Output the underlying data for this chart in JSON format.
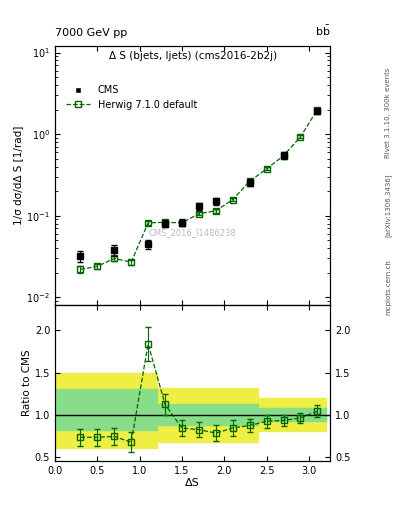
{
  "title_left": "7000 GeV pp",
  "title_right": "b$\\bar{b}$",
  "panel_title": "Δ S (bjets, ljets) (cms2016-2b2j)",
  "ylabel_main": "1/σ dσ/dΔ S [1/rad]",
  "ylabel_ratio": "Ratio to CMS",
  "xlabel": "ΔS",
  "right_label": "Rivet 3.1.10, 300k events",
  "arxiv_label": "[arXiv:1306.3436]",
  "mcplots_label": "mcplots.cern.ch",
  "watermark": "CMS_2016_I1486238",
  "cms_label": "CMS",
  "mc_label": "Herwig 7.1.0 default",
  "cms_x": [
    0.3,
    0.7,
    1.1,
    1.3,
    1.5,
    1.7,
    1.9,
    2.3,
    2.7,
    3.1
  ],
  "cms_y": [
    0.032,
    0.038,
    0.045,
    0.08,
    0.082,
    0.13,
    0.15,
    0.255,
    0.55,
    1.9
  ],
  "cms_yerr": [
    0.005,
    0.006,
    0.006,
    0.008,
    0.008,
    0.012,
    0.015,
    0.025,
    0.05,
    0.15
  ],
  "mc_x": [
    0.3,
    0.5,
    0.7,
    0.9,
    1.1,
    1.3,
    1.5,
    1.7,
    1.9,
    2.1,
    2.3,
    2.5,
    2.7,
    2.9,
    3.1
  ],
  "mc_y": [
    0.022,
    0.024,
    0.03,
    0.027,
    0.082,
    0.083,
    0.082,
    0.106,
    0.115,
    0.158,
    0.265,
    0.375,
    0.545,
    0.93,
    2.0
  ],
  "mc_yerr": [
    0.002,
    0.002,
    0.002,
    0.002,
    0.004,
    0.004,
    0.004,
    0.005,
    0.006,
    0.008,
    0.012,
    0.016,
    0.022,
    0.04,
    0.08
  ],
  "ratio_x": [
    0.3,
    0.5,
    0.7,
    0.9,
    1.1,
    1.3,
    1.5,
    1.7,
    1.9,
    2.1,
    2.3,
    2.5,
    2.7,
    2.9,
    3.1
  ],
  "ratio_y": [
    0.73,
    0.73,
    0.74,
    0.67,
    1.84,
    1.12,
    0.84,
    0.82,
    0.78,
    0.84,
    0.87,
    0.92,
    0.93,
    0.96,
    1.04
  ],
  "ratio_yerr": [
    0.1,
    0.1,
    0.1,
    0.12,
    0.2,
    0.12,
    0.1,
    0.09,
    0.1,
    0.09,
    0.08,
    0.08,
    0.07,
    0.06,
    0.07
  ],
  "green_band_x": [
    0.0,
    0.6,
    1.2,
    2.4,
    3.2
  ],
  "green_band_lo": [
    0.82,
    0.82,
    0.88,
    0.92,
    0.92
  ],
  "green_band_hi": [
    1.3,
    1.3,
    1.12,
    1.08,
    1.08
  ],
  "yellow_band_x": [
    0.0,
    0.6,
    1.2,
    2.4,
    3.2
  ],
  "yellow_band_lo": [
    0.6,
    0.6,
    0.67,
    0.8,
    0.8
  ],
  "yellow_band_hi": [
    1.5,
    1.5,
    1.32,
    1.2,
    1.2
  ],
  "ylim_main": [
    0.008,
    12.0
  ],
  "ylim_ratio": [
    0.45,
    2.3
  ],
  "xlim": [
    0.0,
    3.25
  ],
  "yticks_ratio": [
    0.5,
    1.0,
    1.5,
    2.0
  ],
  "mc_color": "#006600",
  "cms_color": "#000000",
  "green_band_color": "#88dd88",
  "yellow_band_color": "#eeee44",
  "background_color": "#ffffff"
}
